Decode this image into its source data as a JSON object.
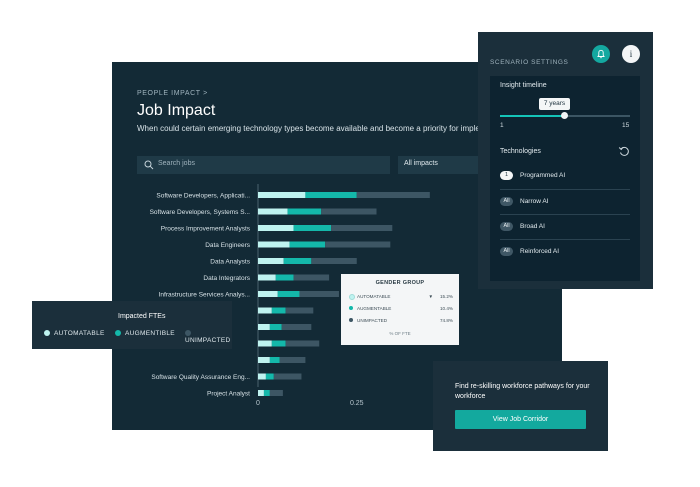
{
  "header": {
    "breadcrumb": "PEOPLE IMPACT  >",
    "title": "Job Impact",
    "subtitle": "When could certain emerging technology types become available and become a priority for implem"
  },
  "filters": {
    "search_placeholder": "Search jobs",
    "impact_select": "All impacts"
  },
  "colors": {
    "automatable": "#bff3f0",
    "augmentable": "#14b8aa",
    "unimpacted": "#3d5664",
    "accent": "#13a99e"
  },
  "chart_data": {
    "type": "bar",
    "orientation": "horizontal",
    "stacked": true,
    "categories": [
      "Software Developers, Applicati...",
      "Software Developers, Systems S...",
      "Process Improvement Analysts",
      "Data Engineers",
      "Data Analysts",
      "Data Integrators",
      "Infrastructure Services Analys...",
      "",
      "",
      "",
      "",
      "Software Quality Assurance Eng...",
      "Project Analyst"
    ],
    "series": [
      {
        "name": "AUTOMATABLE",
        "values": [
          0.12,
          0.075,
          0.09,
          0.08,
          0.065,
          0.045,
          0.05,
          0.035,
          0.03,
          0.035,
          0.03,
          0.02,
          0.015
        ]
      },
      {
        "name": "AUGMENTIBLE",
        "values": [
          0.13,
          0.085,
          0.095,
          0.09,
          0.07,
          0.045,
          0.055,
          0.035,
          0.03,
          0.035,
          0.025,
          0.02,
          0.015
        ]
      },
      {
        "name": "UNIMPACTED",
        "values": [
          0.185,
          0.14,
          0.155,
          0.165,
          0.115,
          0.09,
          0.1,
          0.07,
          0.075,
          0.085,
          0.065,
          0.07,
          0.033
        ]
      }
    ],
    "x_ticks": [
      "0",
      "0.25"
    ],
    "xlim": [
      0,
      0.5
    ]
  },
  "scenario": {
    "title": "SCENARIO SETTINGS",
    "insight_timeline_label": "Insight timeline",
    "slider_value_label": "7 years",
    "slider_min": "1",
    "slider_max": "15",
    "slider_value": 7,
    "technologies_label": "Technologies",
    "technologies": [
      {
        "badge": "1",
        "name": "Programmed AI",
        "active": true
      },
      {
        "badge": "All",
        "name": "Narrow AI",
        "active": false
      },
      {
        "badge": "All",
        "name": "Broad AI",
        "active": false
      },
      {
        "badge": "All",
        "name": "Reinforced AI",
        "active": false
      }
    ]
  },
  "fte_legend": {
    "title": "Impacted FTEs",
    "items": [
      "AUTOMATABLE",
      "AUGMENTIBLE",
      "UNIMPACTED"
    ]
  },
  "gender_popup": {
    "title": "GENDER GROUP",
    "rows": [
      {
        "label": "AUTOMATABLE",
        "value": "15.2%"
      },
      {
        "label": "AUGMENTABLE",
        "value": "10.4%"
      },
      {
        "label": "UNIMPACTED",
        "value": "74.8%"
      }
    ],
    "axis_label": "% OF FTE"
  },
  "reskill": {
    "text": "Find re-skilling workforce pathways for your workforce",
    "button_label": "View Job Corridor"
  }
}
